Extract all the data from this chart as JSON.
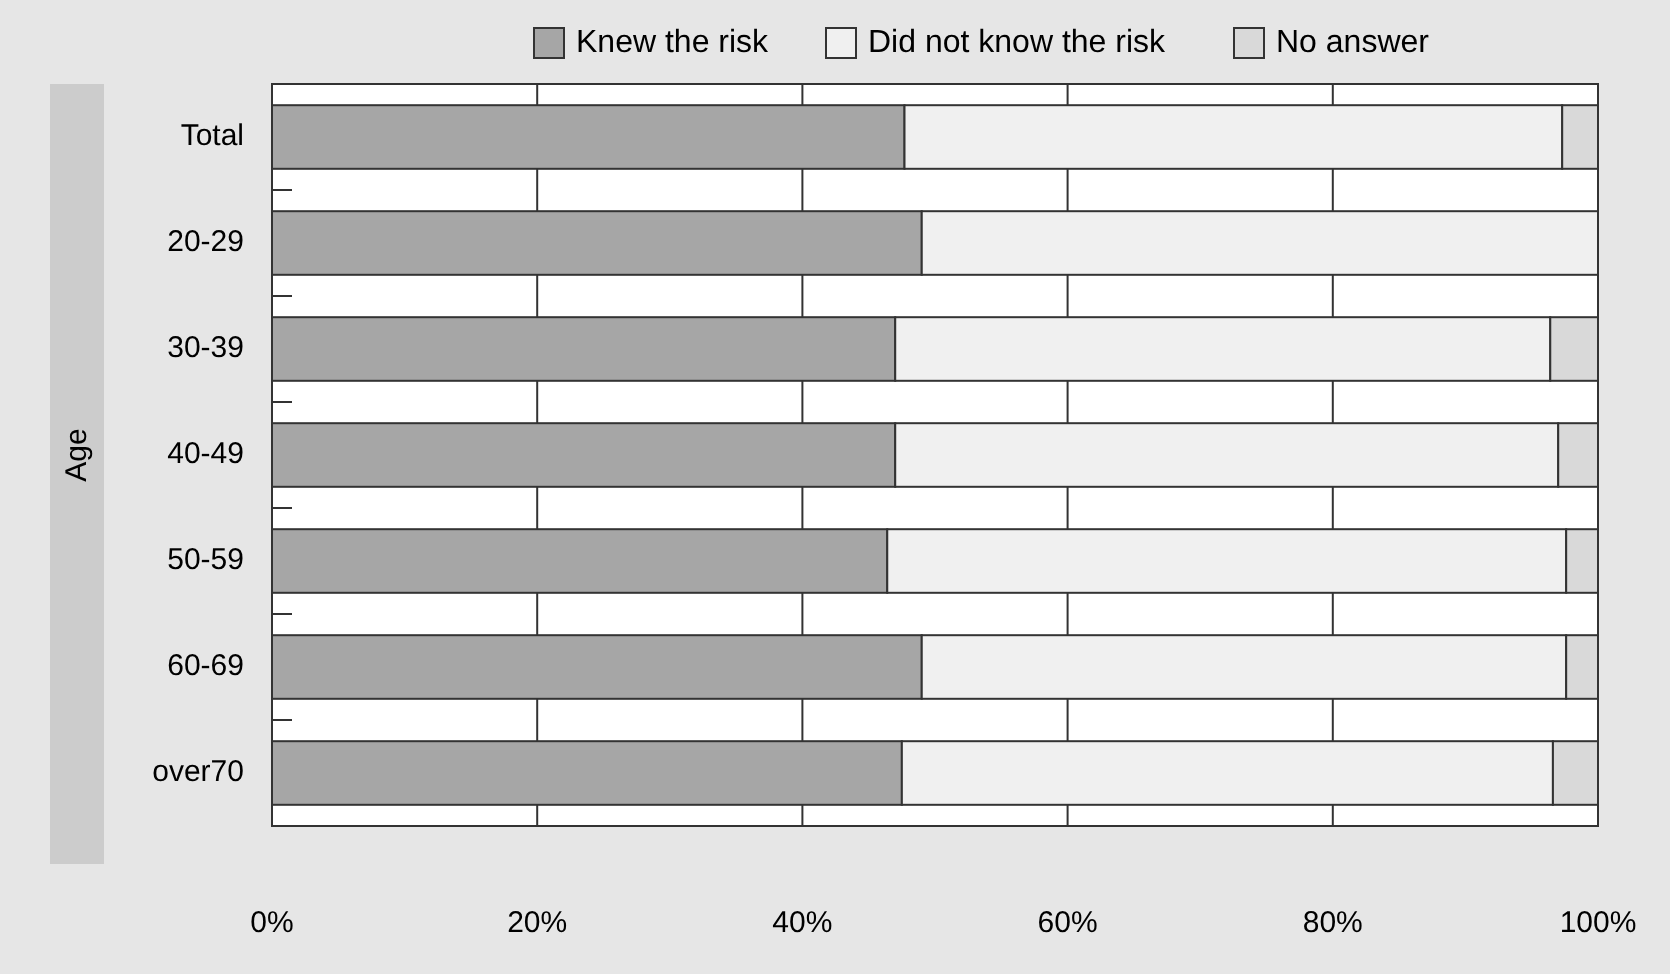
{
  "chart_data": {
    "type": "bar",
    "orientation": "horizontal",
    "stacked": true,
    "ylabel": "Age",
    "categories": [
      "Total",
      "20-29",
      "30-39",
      "40-49",
      "50-59",
      "60-69",
      "over70"
    ],
    "series": [
      {
        "name": "Knew the risk",
        "color": "#a6a6a6",
        "values": [
          47.7,
          49.0,
          47.0,
          47.0,
          46.4,
          49.0,
          47.5
        ]
      },
      {
        "name": "Did not know the risk",
        "color": "#f0f0f0",
        "values": [
          49.6,
          51.0,
          49.4,
          50.0,
          51.2,
          48.6,
          49.1
        ]
      },
      {
        "name": "No answer",
        "color": "#d9d9d9",
        "values": [
          2.7,
          0,
          3.6,
          3.0,
          2.4,
          2.4,
          3.4
        ]
      }
    ],
    "xlim": [
      0,
      100
    ],
    "xticks": [
      {
        "value": 0,
        "label": "0%"
      },
      {
        "value": 20,
        "label": "20%"
      },
      {
        "value": 40,
        "label": "40%"
      },
      {
        "value": 60,
        "label": "60%"
      },
      {
        "value": 80,
        "label": "80%"
      },
      {
        "value": 100,
        "label": "100%"
      }
    ],
    "grid": "x",
    "legend": "top"
  }
}
